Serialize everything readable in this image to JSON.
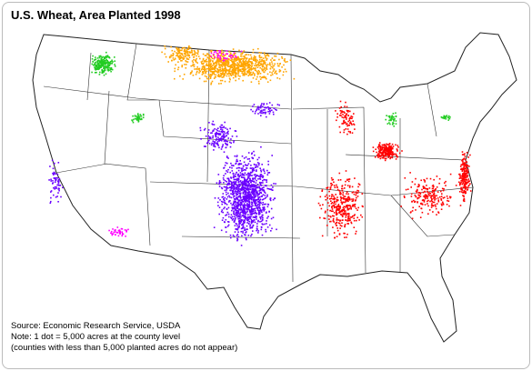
{
  "title": "U.S. Wheat, Area Planted 1998",
  "notes": [
    "Source: Economic Research Service, USDA",
    "Note: 1 dot = 5,000 acres at the county level",
    "(counties with less than 5,000 planted acres do not appear)"
  ]
}
